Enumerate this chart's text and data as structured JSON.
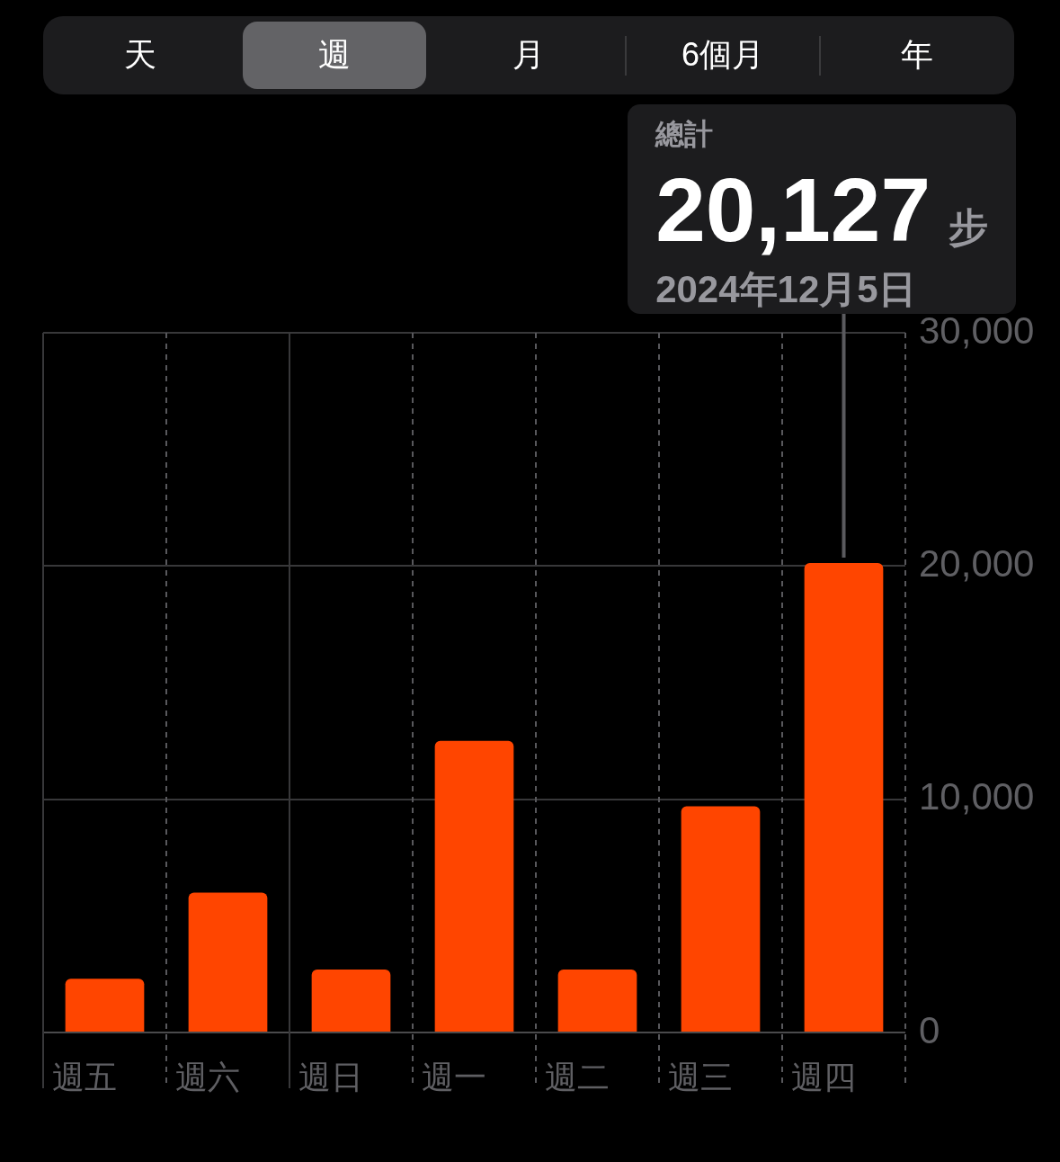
{
  "chart_data": {
    "type": "bar",
    "categories": [
      "週五",
      "週六",
      "週日",
      "週一",
      "週二",
      "週三",
      "週四"
    ],
    "values": [
      2300,
      6000,
      2700,
      12500,
      2700,
      9700,
      20127
    ],
    "color": "#ff4500",
    "ylim": [
      0,
      30000
    ],
    "yticks": [
      0,
      {
        "value": 10000,
        "label": "10,000"
      },
      {
        "value": 20000,
        "label": "20,000"
      },
      {
        "value": 30000,
        "label": "30,000"
      }
    ],
    "grid": true,
    "value_labels": [
      null,
      null,
      null,
      null,
      null,
      null,
      "20,127"
    ],
    "annotations": [
      "天",
      "週",
      "月",
      "6個月",
      "年",
      "總計",
      "步",
      "2024年12月5日"
    ]
  }
}
